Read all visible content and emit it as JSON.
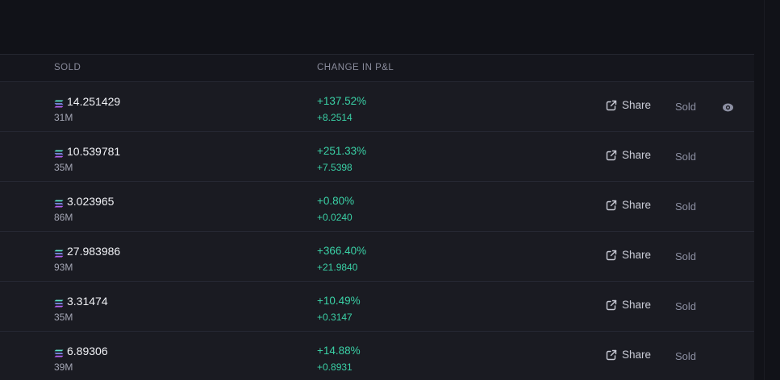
{
  "table": {
    "headers": {
      "sold": "SOLD",
      "change_in_pnl": "CHANGE IN P&L"
    },
    "share_label": "Share",
    "sold_label": "Sold",
    "rows": [
      {
        "sol_amount": "14.251429",
        "market_cap": "31M",
        "pnl_pct": "+137.52%",
        "pnl_abs": "+8.2514"
      },
      {
        "sol_amount": "10.539781",
        "market_cap": "35M",
        "pnl_pct": "+251.33%",
        "pnl_abs": "+7.5398"
      },
      {
        "sol_amount": "3.023965",
        "market_cap": "86M",
        "pnl_pct": "+0.80%",
        "pnl_abs": "+0.0240"
      },
      {
        "sol_amount": "27.983986",
        "market_cap": "93M",
        "pnl_pct": "+366.40%",
        "pnl_abs": "+21.9840"
      },
      {
        "sol_amount": "3.31474",
        "market_cap": "35M",
        "pnl_pct": "+10.49%",
        "pnl_abs": "+0.3147"
      },
      {
        "sol_amount": "6.89306",
        "market_cap": "39M",
        "pnl_pct": "+14.88%",
        "pnl_abs": "+0.8931"
      }
    ]
  },
  "colors": {
    "background": "#111218",
    "row_background": "#1a1b22",
    "positive": "#3ad1a6",
    "muted": "#8d90a3"
  },
  "icons": {
    "currency": "solana-icon",
    "share": "external-link-icon",
    "hide": "eye-icon"
  }
}
